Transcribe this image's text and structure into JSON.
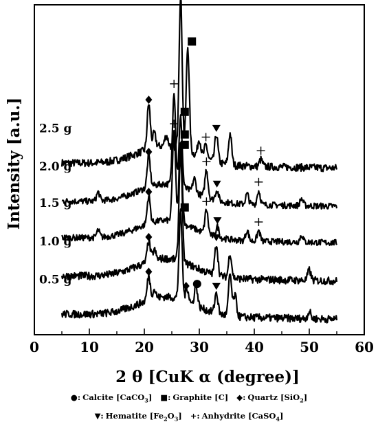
{
  "chart_data": {
    "type": "line",
    "xlabel_main": "2 θ",
    "xlabel_rest": "[CuK α  (degree)]",
    "ylabel": "Intensity [a.u.]",
    "xlim": [
      0,
      60
    ],
    "xticks": [
      0,
      10,
      20,
      30,
      40,
      50,
      60
    ],
    "series": [
      {
        "name": "2.5 g",
        "baseline": 4.5,
        "noise": 0.22,
        "peaks": [
          [
            20.8,
            1.3
          ],
          [
            21.8,
            0.4
          ],
          [
            24.0,
            0.3
          ],
          [
            26.6,
            4.4
          ],
          [
            27.9,
            3.0
          ],
          [
            30.0,
            0.5
          ],
          [
            31.2,
            0.4
          ],
          [
            33.1,
            0.8
          ],
          [
            35.6,
            0.9
          ],
          [
            41.2,
            0.2
          ]
        ],
        "markers": [
          {
            "symbol": "diamond",
            "x": 20.8
          },
          {
            "symbol": "plus",
            "x": 26.6
          },
          {
            "symbol": "square",
            "x": 27.9
          },
          {
            "symbol": "plus",
            "x": 31.2
          },
          {
            "symbol": "triangle",
            "x": 33.1
          },
          {
            "symbol": "plus",
            "x": 41.2
          }
        ]
      },
      {
        "name": "2.0 g",
        "baseline": 3.4,
        "noise": 0.18,
        "peaks": [
          [
            11.6,
            0.25
          ],
          [
            20.8,
            0.9
          ],
          [
            25.4,
            2.7
          ],
          [
            26.6,
            2.0
          ],
          [
            29.1,
            0.4
          ],
          [
            31.3,
            0.8
          ],
          [
            33.2,
            0.3
          ],
          [
            38.7,
            0.3
          ],
          [
            40.8,
            0.4
          ],
          [
            48.6,
            0.2
          ]
        ],
        "markers": [
          {
            "symbol": "diamond",
            "x": 20.8
          },
          {
            "symbol": "plus",
            "x": 25.4
          },
          {
            "symbol": "square",
            "x": 26.6
          },
          {
            "symbol": "plus",
            "x": 31.3
          },
          {
            "symbol": "triangle",
            "x": 33.2
          },
          {
            "symbol": "plus",
            "x": 40.8
          }
        ]
      },
      {
        "name": "1.5 g",
        "baseline": 2.35,
        "noise": 0.18,
        "peaks": [
          [
            11.6,
            0.2
          ],
          [
            20.8,
            0.8
          ],
          [
            25.4,
            2.6
          ],
          [
            26.6,
            2.4
          ],
          [
            31.3,
            0.7
          ],
          [
            33.3,
            0.3
          ],
          [
            38.7,
            0.3
          ],
          [
            40.8,
            0.3
          ],
          [
            48.6,
            0.2
          ]
        ],
        "markers": [
          {
            "symbol": "diamond",
            "x": 20.8
          },
          {
            "symbol": "plus",
            "x": 25.4
          },
          {
            "symbol": "square",
            "x": 26.6
          },
          {
            "symbol": "plus",
            "x": 31.3
          },
          {
            "symbol": "triangle",
            "x": 33.3
          },
          {
            "symbol": "plus",
            "x": 40.8
          }
        ]
      },
      {
        "name": "1.0 g",
        "baseline": 1.25,
        "noise": 0.22,
        "peaks": [
          [
            20.8,
            0.6
          ],
          [
            21.8,
            0.3
          ],
          [
            26.6,
            3.2
          ],
          [
            33.1,
            0.9
          ],
          [
            35.6,
            0.7
          ],
          [
            50.0,
            0.3
          ]
        ],
        "markers": [
          {
            "symbol": "diamond",
            "x": 20.8
          },
          {
            "symbol": "square",
            "x": 26.6
          },
          {
            "symbol": "triangle",
            "x": 33.1
          }
        ]
      },
      {
        "name": "0.5 g",
        "baseline": 0.15,
        "noise": 0.22,
        "peaks": [
          [
            20.8,
            0.7
          ],
          [
            21.8,
            0.25
          ],
          [
            26.6,
            2.5
          ],
          [
            27.8,
            0.4
          ],
          [
            29.4,
            0.6
          ],
          [
            33.1,
            0.6
          ],
          [
            35.6,
            1.2
          ],
          [
            36.5,
            0.6
          ],
          [
            50.0,
            0.2
          ]
        ],
        "markers": [
          {
            "symbol": "diamond",
            "x": 20.8
          },
          {
            "symbol": "square",
            "x": 26.6
          },
          {
            "symbol": "diamond",
            "x": 27.6
          },
          {
            "symbol": "circle",
            "x": 29.6
          },
          {
            "symbol": "triangle",
            "x": 33.1
          }
        ]
      }
    ],
    "legend_rows": [
      [
        {
          "symbol": "●",
          "label": "Calcite [CaCO",
          "sub": "3",
          "close": "]"
        },
        {
          "symbol": "■",
          "label": "Graphite [C",
          "sub": "",
          "close": "]"
        },
        {
          "symbol": "◆",
          "label": "Quartz [SiO",
          "sub": "2",
          "close": "]"
        }
      ],
      [
        {
          "symbol": "▼",
          "label": "Hematite [Fe",
          "sub": "2",
          "mid": "O",
          "sub2": "3",
          "close": "]"
        },
        {
          "symbol": "+",
          "label": "Anhydrite [CaSO",
          "sub": "4",
          "close": "]"
        }
      ]
    ]
  }
}
